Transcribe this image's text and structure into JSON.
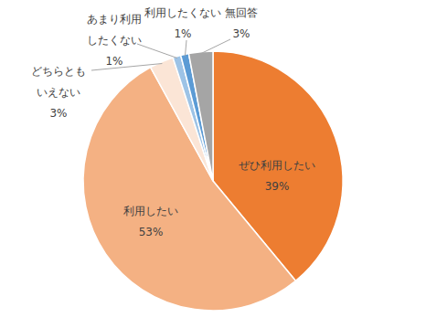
{
  "chart_data": {
    "type": "pie",
    "categories": [
      "ぜひ利用したい",
      "利用したい",
      "どちらともいえない",
      "あまり利用したくない",
      "利用したくない",
      "無回答"
    ],
    "values": [
      39,
      53,
      3,
      1,
      1,
      3
    ],
    "value_labels": [
      "39%",
      "53%",
      "3%",
      "1%",
      "1%",
      "3%"
    ],
    "colors": [
      "#ED7D31",
      "#F4B183",
      "#FBE5D6",
      "#9DC3E6",
      "#5B9BD5",
      "#A5A5A5"
    ],
    "data_labels": true
  }
}
